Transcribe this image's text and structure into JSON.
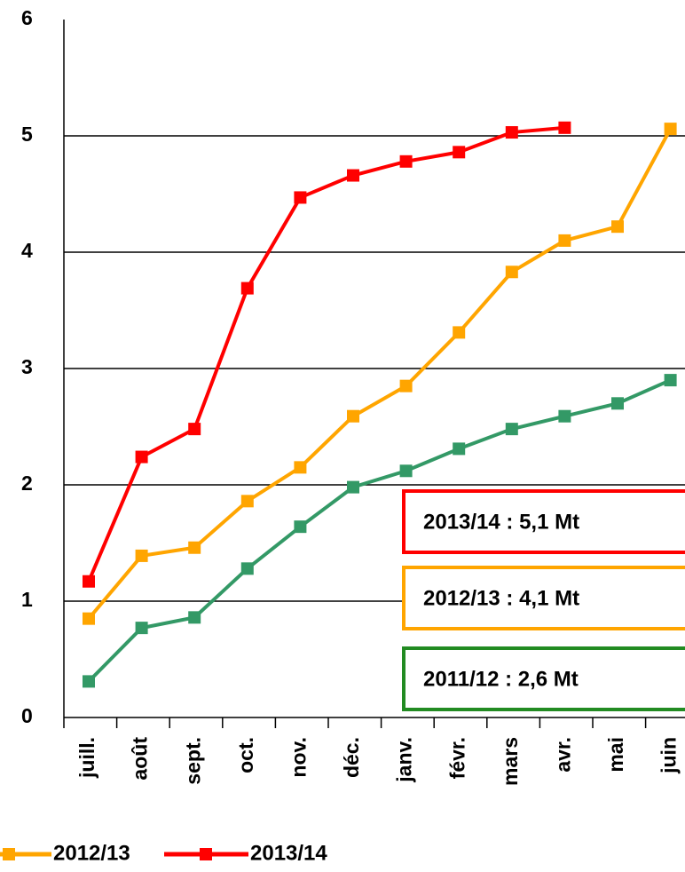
{
  "chart_data": {
    "type": "line",
    "categories": [
      "juill.",
      "août",
      "sept.",
      "oct.",
      "nov.",
      "déc.",
      "janv.",
      "févr.",
      "mars",
      "avr.",
      "mai",
      "juin"
    ],
    "series": [
      {
        "name": "2011/12",
        "color": "#339966",
        "values": [
          0.31,
          0.77,
          0.86,
          1.28,
          1.64,
          1.98,
          2.12,
          2.31,
          2.48,
          2.59,
          2.7,
          2.9
        ]
      },
      {
        "name": "2012/13",
        "color": "#ffa500",
        "values": [
          0.85,
          1.39,
          1.46,
          1.86,
          2.15,
          2.59,
          2.85,
          3.31,
          3.83,
          4.1,
          4.22,
          5.06
        ]
      },
      {
        "name": "2013/14",
        "color": "#ff0000",
        "values": [
          1.17,
          2.24,
          2.48,
          3.69,
          4.47,
          4.66,
          4.78,
          4.86,
          5.03,
          5.07,
          null,
          null
        ]
      }
    ],
    "ylim": [
      0,
      6
    ],
    "yticks": [
      0,
      1,
      2,
      3,
      4,
      5,
      6
    ],
    "grid": true,
    "annotations": [
      {
        "text": "2013/14 : 5,1 Mt",
        "color": "#ff0000"
      },
      {
        "text": "2012/13 : 4,1 Mt",
        "color": "#ffa500"
      },
      {
        "text": "2011/12 : 2,6 Mt",
        "color": "#228b22"
      }
    ]
  }
}
